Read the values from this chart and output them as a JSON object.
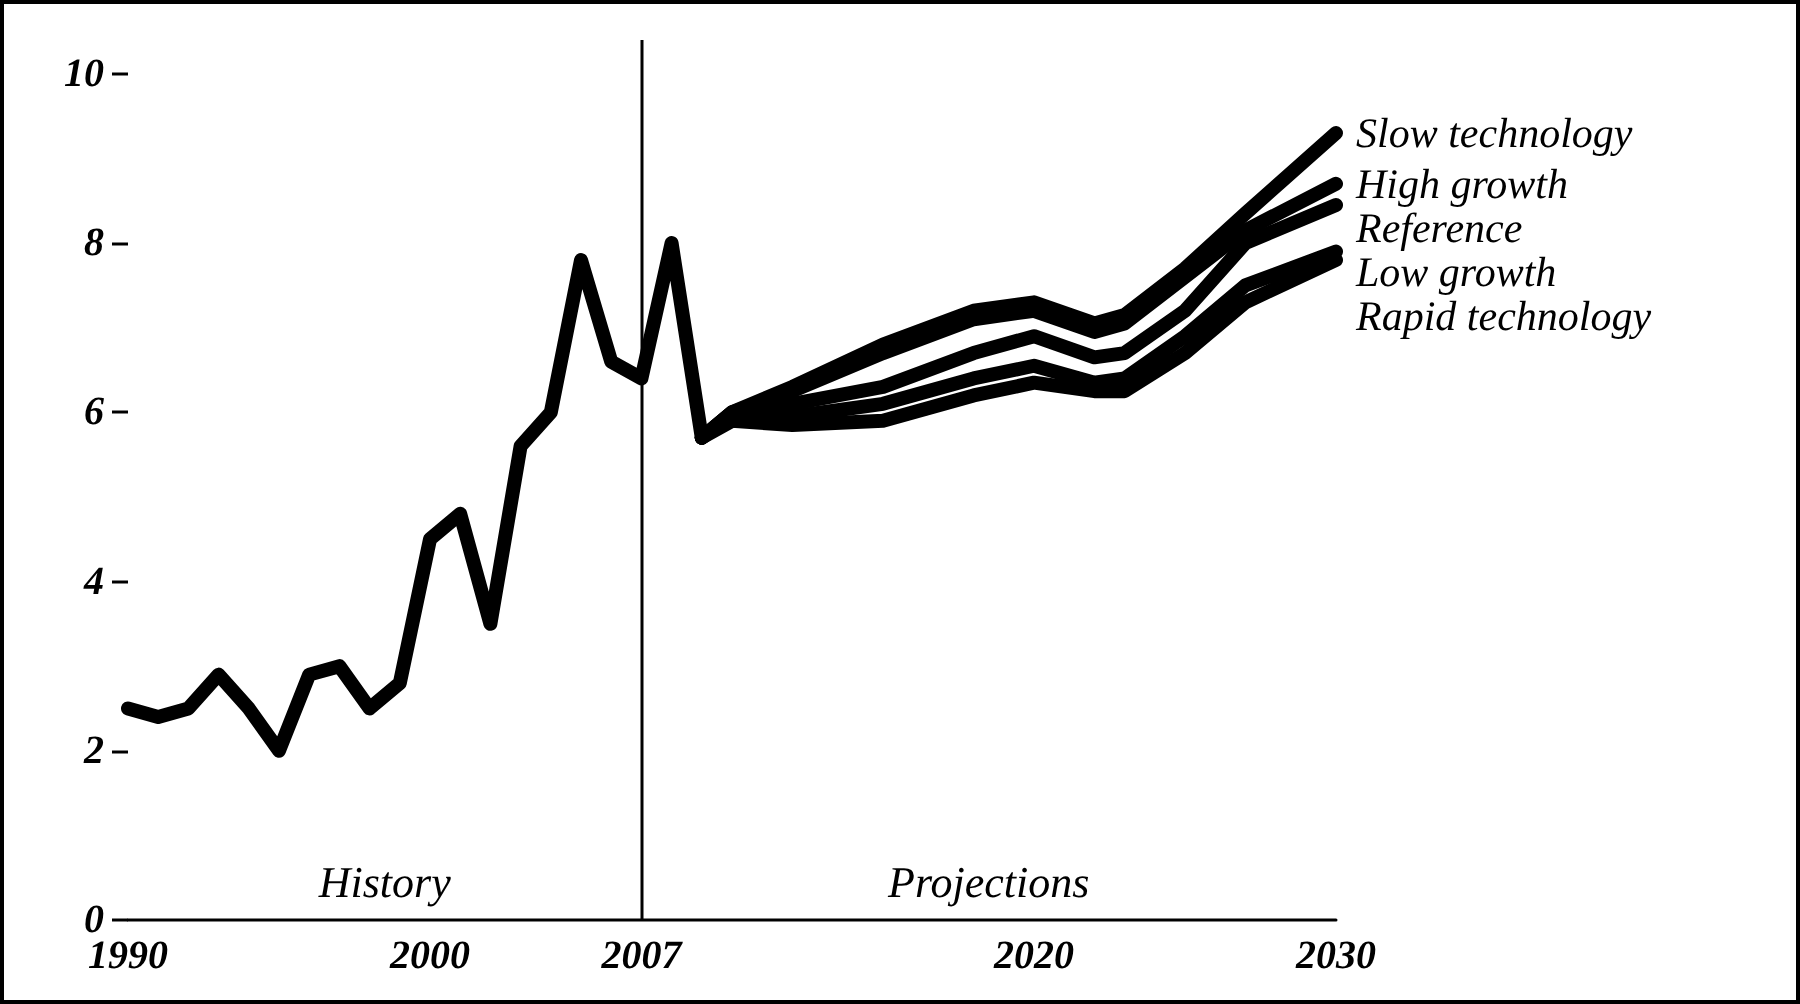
{
  "chart_data": {
    "type": "line",
    "series": [
      {
        "color": "#000000",
        "x": [
          1990,
          1991,
          1992,
          1993,
          1994,
          1995,
          1996,
          1997,
          1998,
          1999,
          2000,
          2001,
          2002,
          2003,
          2004,
          2005,
          2006,
          2007,
          2008,
          2009
        ],
        "values": [
          2.5,
          2.4,
          2.5,
          2.9,
          2.5,
          2.0,
          2.9,
          3.0,
          2.5,
          2.8,
          4.5,
          4.8,
          3.5,
          5.6,
          6.0,
          7.8,
          6.6,
          6.4,
          8.0,
          5.7
        ]
      },
      {
        "name": "Slow technology",
        "color": "#000000",
        "x": [
          2009,
          2010,
          2012,
          2015,
          2018,
          2020,
          2022,
          2023,
          2025,
          2027,
          2030
        ],
        "values": [
          5.7,
          6.0,
          6.3,
          6.8,
          7.2,
          7.3,
          7.05,
          7.15,
          7.7,
          8.35,
          9.3
        ]
      },
      {
        "name": "High growth",
        "color": "#000000",
        "x": [
          2009,
          2010,
          2012,
          2015,
          2018,
          2020,
          2022,
          2023,
          2025,
          2027,
          2030
        ],
        "values": [
          5.7,
          6.0,
          6.25,
          6.7,
          7.1,
          7.2,
          6.95,
          7.05,
          7.6,
          8.15,
          8.7
        ]
      },
      {
        "name": "Reference",
        "color": "#000000",
        "x": [
          2009,
          2010,
          2012,
          2015,
          2018,
          2020,
          2022,
          2023,
          2025,
          2027,
          2030
        ],
        "values": [
          5.7,
          6.0,
          6.1,
          6.3,
          6.7,
          6.9,
          6.65,
          6.7,
          7.2,
          8.0,
          8.45
        ]
      },
      {
        "name": "Low growth",
        "color": "#000000",
        "x": [
          2009,
          2010,
          2012,
          2015,
          2018,
          2020,
          2022,
          2023,
          2025,
          2027,
          2030
        ],
        "values": [
          5.7,
          5.95,
          5.95,
          6.1,
          6.4,
          6.55,
          6.35,
          6.4,
          6.9,
          7.5,
          7.9
        ]
      },
      {
        "name": "Rapid technology",
        "color": "#000000",
        "x": [
          2009,
          2010,
          2012,
          2015,
          2018,
          2020,
          2022,
          2023,
          2025,
          2027,
          2030
        ],
        "values": [
          5.7,
          5.9,
          5.85,
          5.9,
          6.2,
          6.35,
          6.25,
          6.25,
          6.7,
          7.3,
          7.8
        ]
      }
    ],
    "xlim": [
      1990,
      2030
    ],
    "xticks": [
      1990,
      2000,
      2007,
      2020,
      2030
    ],
    "ylim": [
      0,
      10.4
    ],
    "yticks": [
      0,
      2,
      4,
      6,
      8,
      10
    ],
    "ref_lines": [
      {
        "axis": "x",
        "value": 2007,
        "color": "#000000"
      }
    ],
    "annotations": [
      "History",
      "Projections"
    ],
    "grid": false,
    "legend": false,
    "line_style": "solid"
  }
}
